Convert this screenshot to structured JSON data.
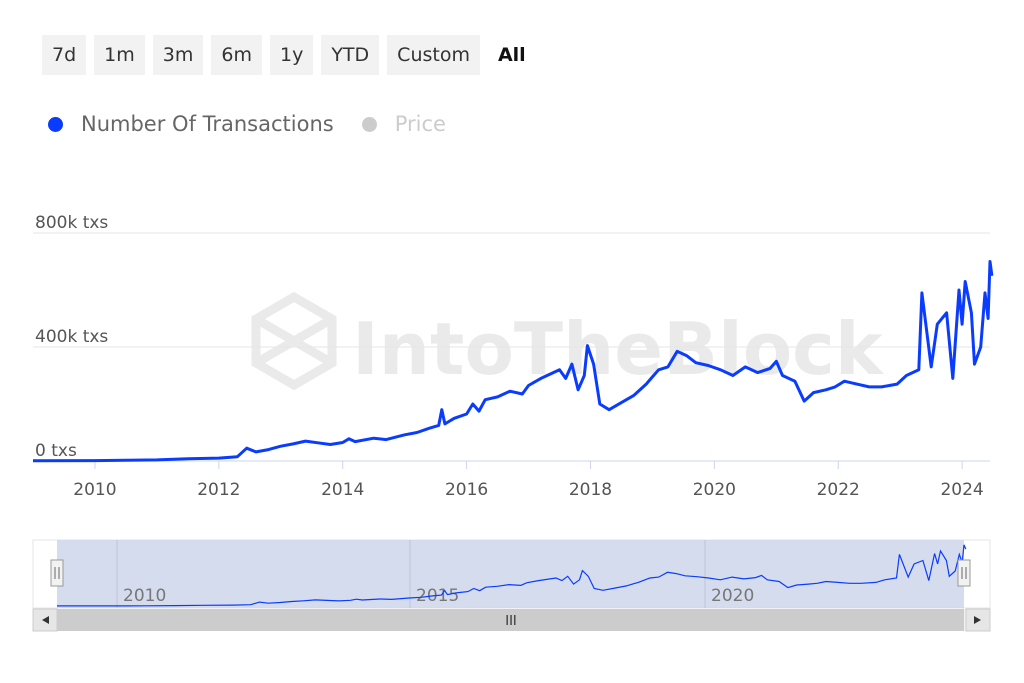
{
  "range_selector": {
    "buttons": [
      {
        "label": "7d",
        "active": false
      },
      {
        "label": "1m",
        "active": false
      },
      {
        "label": "3m",
        "active": false
      },
      {
        "label": "6m",
        "active": false
      },
      {
        "label": "1y",
        "active": false
      },
      {
        "label": "YTD",
        "active": false
      },
      {
        "label": "Custom",
        "active": false
      },
      {
        "label": "All",
        "active": true
      }
    ]
  },
  "legend": {
    "items": [
      {
        "label": "Number Of Transactions",
        "color": "#0a3cff",
        "label_color": "#666666",
        "enabled": true
      },
      {
        "label": "Price",
        "color": "#cccccc",
        "label_color": "#cccccc",
        "enabled": false
      }
    ]
  },
  "watermark": "IntoTheBlock",
  "navigator": {
    "tick_labels": [
      "2010",
      "2015",
      "2020"
    ],
    "scrollbar_grip": "III"
  },
  "chart_data": {
    "type": "line",
    "series": [
      {
        "name": "Number Of Transactions",
        "color": "#0a3cff",
        "points": [
          [
            2009.0,
            1000
          ],
          [
            2010.0,
            1500
          ],
          [
            2010.5,
            2500
          ],
          [
            2011.0,
            4000
          ],
          [
            2011.5,
            8000
          ],
          [
            2012.0,
            10000
          ],
          [
            2012.3,
            15000
          ],
          [
            2012.45,
            45000
          ],
          [
            2012.6,
            32000
          ],
          [
            2012.8,
            40000
          ],
          [
            2013.0,
            52000
          ],
          [
            2013.2,
            60000
          ],
          [
            2013.4,
            70000
          ],
          [
            2013.6,
            64000
          ],
          [
            2013.8,
            58000
          ],
          [
            2014.0,
            65000
          ],
          [
            2014.1,
            78000
          ],
          [
            2014.2,
            68000
          ],
          [
            2014.5,
            80000
          ],
          [
            2014.7,
            75000
          ],
          [
            2015.0,
            92000
          ],
          [
            2015.2,
            100000
          ],
          [
            2015.4,
            115000
          ],
          [
            2015.55,
            125000
          ],
          [
            2015.6,
            180000
          ],
          [
            2015.65,
            130000
          ],
          [
            2015.8,
            150000
          ],
          [
            2016.0,
            165000
          ],
          [
            2016.1,
            200000
          ],
          [
            2016.2,
            175000
          ],
          [
            2016.3,
            215000
          ],
          [
            2016.5,
            225000
          ],
          [
            2016.7,
            245000
          ],
          [
            2016.9,
            235000
          ],
          [
            2017.0,
            265000
          ],
          [
            2017.2,
            290000
          ],
          [
            2017.4,
            310000
          ],
          [
            2017.5,
            320000
          ],
          [
            2017.6,
            290000
          ],
          [
            2017.7,
            340000
          ],
          [
            2017.8,
            250000
          ],
          [
            2017.9,
            300000
          ],
          [
            2017.95,
            405000
          ],
          [
            2018.05,
            340000
          ],
          [
            2018.15,
            200000
          ],
          [
            2018.3,
            180000
          ],
          [
            2018.5,
            205000
          ],
          [
            2018.7,
            230000
          ],
          [
            2018.9,
            270000
          ],
          [
            2019.0,
            295000
          ],
          [
            2019.1,
            320000
          ],
          [
            2019.25,
            330000
          ],
          [
            2019.4,
            385000
          ],
          [
            2019.55,
            370000
          ],
          [
            2019.7,
            345000
          ],
          [
            2019.9,
            335000
          ],
          [
            2020.1,
            320000
          ],
          [
            2020.3,
            300000
          ],
          [
            2020.5,
            330000
          ],
          [
            2020.7,
            310000
          ],
          [
            2020.9,
            325000
          ],
          [
            2021.0,
            350000
          ],
          [
            2021.1,
            300000
          ],
          [
            2021.3,
            280000
          ],
          [
            2021.45,
            210000
          ],
          [
            2021.6,
            240000
          ],
          [
            2021.8,
            250000
          ],
          [
            2021.95,
            260000
          ],
          [
            2022.1,
            280000
          ],
          [
            2022.3,
            270000
          ],
          [
            2022.5,
            260000
          ],
          [
            2022.7,
            260000
          ],
          [
            2022.95,
            270000
          ],
          [
            2023.1,
            300000
          ],
          [
            2023.3,
            320000
          ],
          [
            2023.35,
            590000
          ],
          [
            2023.5,
            330000
          ],
          [
            2023.6,
            480000
          ],
          [
            2023.75,
            520000
          ],
          [
            2023.85,
            290000
          ],
          [
            2023.95,
            600000
          ],
          [
            2024.0,
            480000
          ],
          [
            2024.05,
            630000
          ],
          [
            2024.15,
            520000
          ],
          [
            2024.2,
            340000
          ],
          [
            2024.3,
            400000
          ],
          [
            2024.37,
            590000
          ],
          [
            2024.42,
            500000
          ],
          [
            2024.45,
            700000
          ],
          [
            2024.48,
            650000
          ]
        ]
      }
    ],
    "y_ticks": [
      {
        "value": 0,
        "label": "0 txs"
      },
      {
        "value": 400000,
        "label": "400k txs"
      },
      {
        "value": 800000,
        "label": "800k txs"
      }
    ],
    "x_ticks": [
      "2010",
      "2012",
      "2014",
      "2016",
      "2018",
      "2020",
      "2022",
      "2024"
    ],
    "xlim": [
      2009.0,
      2024.45
    ],
    "ylim": [
      0,
      800000
    ],
    "grid": true,
    "legend_position": "top-left"
  }
}
